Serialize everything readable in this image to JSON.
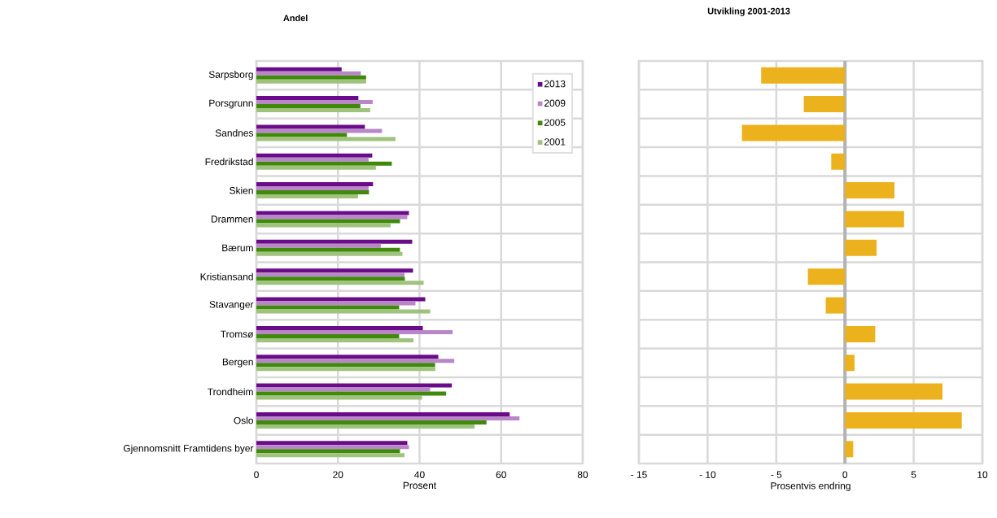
{
  "chart_data": [
    {
      "type": "bar",
      "orientation": "horizontal",
      "title": "Andel",
      "xlabel": "Prosent",
      "categories": [
        "Sarpsborg",
        "Porsgrunn",
        "Sandnes",
        "Fredrikstad",
        "Skien",
        "Drammen",
        "Bærum",
        "Kristiansand",
        "Stavanger",
        "Tromsø",
        "Bergen",
        "Trondheim",
        "Oslo",
        "Gjennomsnitt Framtidens byer"
      ],
      "series": [
        {
          "name": "2013",
          "color": "#6a0c8a",
          "values": [
            20.9,
            25.0,
            26.6,
            28.4,
            28.6,
            37.4,
            38.2,
            38.4,
            41.4,
            40.8,
            44.6,
            47.9,
            62.1,
            37.0
          ]
        },
        {
          "name": "2009",
          "color": "#b987c8",
          "values": [
            25.6,
            28.5,
            30.8,
            27.5,
            27.5,
            37.0,
            30.5,
            36.3,
            39.0,
            48.1,
            48.5,
            42.6,
            64.5,
            37.4
          ]
        },
        {
          "name": "2005",
          "color": "#3f8a0a",
          "values": [
            26.9,
            25.5,
            22.2,
            33.2,
            27.6,
            35.2,
            35.2,
            36.4,
            35.0,
            35.0,
            43.8,
            46.5,
            56.4,
            35.2
          ]
        },
        {
          "name": "2001",
          "color": "#9fc37e",
          "values": [
            26.9,
            27.9,
            34.1,
            29.3,
            24.9,
            32.9,
            35.8,
            41.0,
            42.6,
            38.5,
            43.9,
            40.6,
            53.5,
            36.3
          ]
        }
      ],
      "xlim": [
        0,
        80
      ],
      "xticks": [
        0,
        20,
        40,
        60,
        80
      ],
      "grid": true,
      "legend": "top right"
    },
    {
      "type": "bar",
      "orientation": "horizontal",
      "title": "Utvikling 2001-2013",
      "xlabel": "Prosentvis endring",
      "values": [
        -6.1,
        -3.0,
        -7.5,
        -1.0,
        3.6,
        4.3,
        2.3,
        -2.7,
        -1.4,
        2.2,
        0.7,
        7.1,
        8.5,
        0.6
      ],
      "color": "#ebb21e",
      "xlim": [
        -15,
        10
      ],
      "xticks": [
        {
          "value": -15,
          "label": "- 15"
        },
        {
          "value": -10,
          "label": "- 10"
        },
        {
          "value": -5,
          "label": "- 5"
        },
        0,
        5,
        10
      ],
      "grid": true,
      "tick_labels": "x"
    }
  ]
}
